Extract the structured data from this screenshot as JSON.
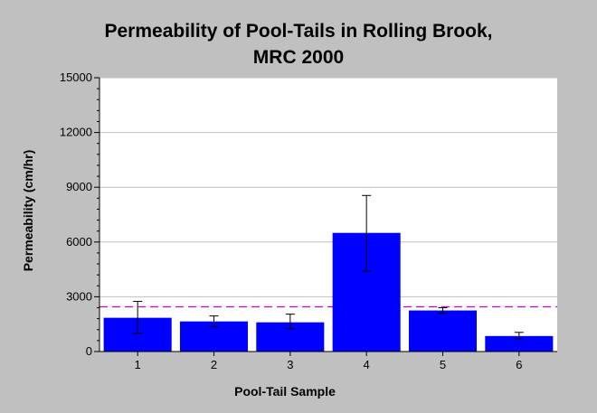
{
  "chart_data": {
    "type": "bar",
    "title_lines": [
      "Permeability of Pool-Tails in Rolling Brook,",
      "MRC 2000"
    ],
    "xlabel": "Pool-Tail Sample",
    "ylabel": "Permeability (cm/hr)",
    "categories": [
      "1",
      "2",
      "3",
      "4",
      "5",
      "6"
    ],
    "values": [
      1850,
      1650,
      1600,
      6500,
      2250,
      850
    ],
    "error_low": [
      1000,
      1350,
      1250,
      4400,
      2100,
      700
    ],
    "error_high": [
      2750,
      1950,
      2050,
      8550,
      2400,
      1050
    ],
    "reference_line": 2450,
    "ylim": [
      0,
      15000
    ],
    "yticks": [
      0,
      3000,
      6000,
      9000,
      12000,
      15000
    ],
    "grid": true,
    "colors": {
      "bar": "#0000ff",
      "reference_line": "#cc00cc",
      "plot_background": "#ffffff",
      "page_background": "#c0c0c0",
      "grid": "#c0c0c0"
    }
  }
}
